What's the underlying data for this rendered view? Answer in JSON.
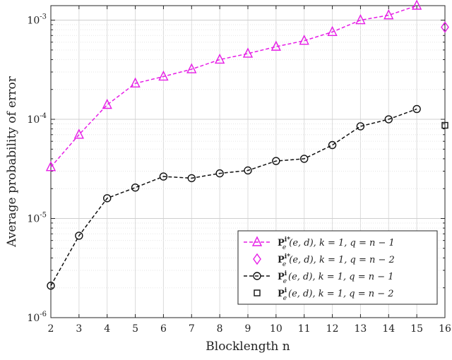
{
  "chart_data": {
    "type": "line",
    "title": "",
    "xlabel": "Blocklength n",
    "ylabel": "Average probability of error",
    "yscale": "log",
    "xlim": [
      2,
      16
    ],
    "ylim": [
      1e-06,
      0.0014
    ],
    "grid": true,
    "legend_position": "bottom-right",
    "x_ticks": [
      "2",
      "3",
      "4",
      "5",
      "6",
      "7",
      "8",
      "9",
      "10",
      "11",
      "12",
      "13",
      "14",
      "15",
      "16"
    ],
    "y_ticks": [
      {
        "value": 1e-06,
        "base": "10",
        "exp": "-6"
      },
      {
        "value": 1e-05,
        "base": "10",
        "exp": "-5"
      },
      {
        "value": 0.0001,
        "base": "10",
        "exp": "-4"
      },
      {
        "value": 0.001,
        "base": "10",
        "exp": "-3"
      }
    ],
    "series": [
      {
        "name": "P_e^{i*}(e,d), k = 1, q = n − 1",
        "color": "#e61ee6",
        "marker": "triangle",
        "line": "dashed",
        "x": [
          2,
          3,
          4,
          5,
          6,
          7,
          8,
          9,
          10,
          11,
          12,
          13,
          14,
          15
        ],
        "y": [
          3.3e-05,
          7e-05,
          0.00014,
          0.00023,
          0.00027,
          0.00032,
          0.0004,
          0.00046,
          0.00054,
          0.00062,
          0.00076,
          0.001,
          0.00112,
          0.0014
        ]
      },
      {
        "name": "P_e^{i*}(e,d), k = 1, q = n − 2",
        "color": "#e61ee6",
        "marker": "diamond",
        "line": "none",
        "x": [
          16
        ],
        "y": [
          0.00085
        ]
      },
      {
        "name": "P_e^{i}(e,d), k = 1, q = n − 1",
        "color": "#111111",
        "marker": "circle",
        "line": "dashed",
        "x": [
          2,
          3,
          4,
          5,
          6,
          7,
          8,
          9,
          10,
          11,
          12,
          13,
          14,
          15
        ],
        "y": [
          2.1e-06,
          6.7e-06,
          1.6e-05,
          2.05e-05,
          2.65e-05,
          2.55e-05,
          2.85e-05,
          3.05e-05,
          3.8e-05,
          4e-05,
          5.5e-05,
          8.5e-05,
          0.0001,
          0.000127
        ]
      },
      {
        "name": "P_e^{i}(e,d), k = 1, q = n − 2",
        "color": "#111111",
        "marker": "square",
        "line": "none",
        "x": [
          16
        ],
        "y": [
          8.7e-05
        ]
      }
    ],
    "legend": [
      {
        "sup": "i*",
        "rest": "(e, d), k = 1, q = n − 1"
      },
      {
        "sup": "i*",
        "rest": "(e, d), k = 1, q = n − 2"
      },
      {
        "sup": "i",
        "rest": "(e, d), k = 1, q = n − 1"
      },
      {
        "sup": "i",
        "rest": "(e, d), k = 1, q = n − 2"
      }
    ],
    "legend_symbol": "P",
    "legend_sub": "e"
  }
}
